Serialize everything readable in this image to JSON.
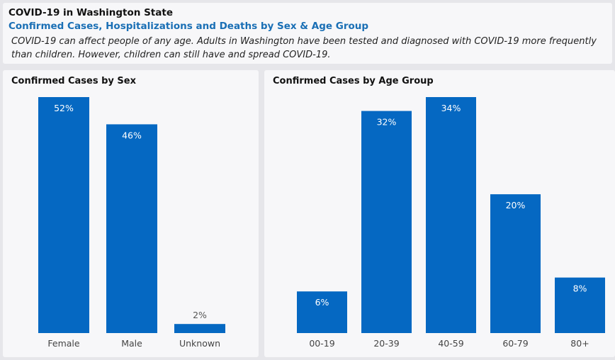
{
  "header": {
    "title": "COVID-19 in Washington State",
    "subtitle": "Confirmed Cases, Hospitalizations and Deaths by Sex & Age Group",
    "description": "COVID-19 can affect people of any age. Adults in Washington have been tested and diagnosed with COVID-19 more frequently than children. However, children can still have and spread COVID-19."
  },
  "colors": {
    "bar": "#0568c2",
    "label_outside": "#555555",
    "label_inside": "#ffffff",
    "axis_text": "#444444"
  },
  "chart_data": [
    {
      "type": "bar",
      "title": "Confirmed Cases by Sex",
      "categories": [
        "Female",
        "Male",
        "Unknown"
      ],
      "values": [
        52,
        46,
        2
      ],
      "labels": [
        "52%",
        "46%",
        "2%"
      ],
      "ylim": [
        0,
        52
      ],
      "xlabel": "",
      "ylabel": ""
    },
    {
      "type": "bar",
      "title": "Confirmed Cases by Age Group",
      "categories": [
        "00-19",
        "20-39",
        "40-59",
        "60-79",
        "80+"
      ],
      "values": [
        6,
        32,
        34,
        20,
        8
      ],
      "labels": [
        "6%",
        "32%",
        "34%",
        "20%",
        "8%"
      ],
      "ylim": [
        0,
        34
      ],
      "xlabel": "",
      "ylabel": ""
    }
  ]
}
